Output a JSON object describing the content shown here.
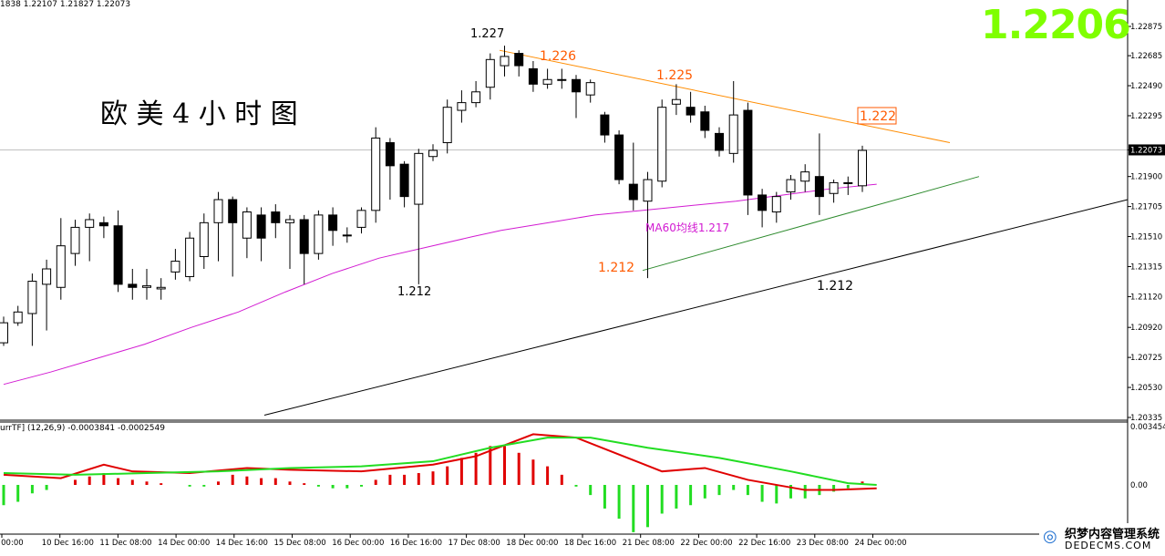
{
  "header": {
    "ohlc_text": "1838 1.22107 1.21827 1.22073",
    "big_price": "1.2206",
    "title": "欧 美 4 小 时 图"
  },
  "macd": {
    "info_text": "urrTF] (12,26,9) -0.0003841 -0.0002549",
    "axis_labels": [
      "0.003454",
      "0.00"
    ]
  },
  "watermark": {
    "logo": "◎",
    "line1": "织梦内容管理系统",
    "line2": "DEDECMS.COM"
  },
  "colors": {
    "up": "#ffffff",
    "down": "#000000",
    "ma60": "#d21bd2",
    "resistance": "#ff8c00",
    "support_green": "#2e8b2e",
    "support_black": "#000000",
    "macd_red": "#e00000",
    "macd_green": "#22dd22",
    "label_orange": "#ff5a00",
    "big_price": "#7fff00"
  },
  "chart_data": {
    "type": "candlestick",
    "title": "欧 美 4 小 时 图",
    "ylim": [
      1.20335,
      1.22875
    ],
    "current_price": 1.22073,
    "yticks": [
      "1.22875",
      "1.22685",
      "1.22490",
      "1.22295",
      "1.22073",
      "1.21900",
      "1.21705",
      "1.21510",
      "1.21315",
      "1.21120",
      "1.20920",
      "1.20725",
      "1.20530",
      "1.20335"
    ],
    "xticks": [
      "Dec 00:00",
      "10 Dec 16:00",
      "11 Dec 08:00",
      "14 Dec 00:00",
      "14 Dec 16:00",
      "15 Dec 08:00",
      "16 Dec 00:00",
      "16 Dec 16:00",
      "17 Dec 08:00",
      "18 Dec 00:00",
      "18 Dec 16:00",
      "21 Dec 08:00",
      "22 Dec 00:00",
      "22 Dec 16:00",
      "23 Dec 08:00",
      "24 Dec 00:00"
    ],
    "candles": [
      [
        1.2082,
        1.2095,
        1.208,
        1.2099
      ],
      [
        1.2095,
        1.2102,
        1.2093,
        1.2106
      ],
      [
        1.2101,
        1.2122,
        1.208,
        1.2127
      ],
      [
        1.212,
        1.213,
        1.209,
        1.2136
      ],
      [
        1.2118,
        1.2145,
        1.211,
        1.2163
      ],
      [
        1.214,
        1.2157,
        1.2132,
        1.2162
      ],
      [
        1.2157,
        1.2162,
        1.2135,
        1.2166
      ],
      [
        1.216,
        1.2158,
        1.215,
        1.2164
      ],
      [
        1.2158,
        1.212,
        1.2115,
        1.2168
      ],
      [
        1.212,
        1.2118,
        1.211,
        1.213
      ],
      [
        1.2118,
        1.2119,
        1.211,
        1.213
      ],
      [
        1.2117,
        1.2118,
        1.211,
        1.2124
      ],
      [
        1.2128,
        1.2135,
        1.2123,
        1.2143
      ],
      [
        1.2125,
        1.215,
        1.2122,
        1.2154
      ],
      [
        1.2138,
        1.216,
        1.213,
        1.2166
      ],
      [
        1.216,
        1.2175,
        1.2135,
        1.218
      ],
      [
        1.2175,
        1.216,
        1.2125,
        1.2177
      ],
      [
        1.215,
        1.2167,
        1.2137,
        1.217
      ],
      [
        1.2165,
        1.215,
        1.2135,
        1.217
      ],
      [
        1.2167,
        1.216,
        1.215,
        1.2172
      ],
      [
        1.216,
        1.2162,
        1.213,
        1.2165
      ],
      [
        1.2162,
        1.214,
        1.212,
        1.2165
      ],
      [
        1.214,
        1.2165,
        1.2136,
        1.2168
      ],
      [
        1.2165,
        1.2155,
        1.2145,
        1.217
      ],
      [
        1.2152,
        1.2152,
        1.2147,
        1.2157
      ],
      [
        1.2157,
        1.2168,
        1.2153,
        1.217
      ],
      [
        1.2168,
        1.2215,
        1.216,
        1.2222
      ],
      [
        1.2212,
        1.2197,
        1.2175,
        1.2215
      ],
      [
        1.2198,
        1.2177,
        1.217,
        1.22
      ],
      [
        1.2172,
        1.2205,
        1.212,
        1.2208
      ],
      [
        1.2203,
        1.2207,
        1.22,
        1.2211
      ],
      [
        1.2212,
        1.2235,
        1.2205,
        1.224
      ],
      [
        1.2233,
        1.2238,
        1.2225,
        1.2246
      ],
      [
        1.2238,
        1.2245,
        1.2235,
        1.2252
      ],
      [
        1.2248,
        1.2266,
        1.224,
        1.227
      ],
      [
        1.2262,
        1.2268,
        1.2255,
        1.2275
      ],
      [
        1.227,
        1.2262,
        1.2255,
        1.2272
      ],
      [
        1.226,
        1.225,
        1.2245,
        1.2265
      ],
      [
        1.225,
        1.2253,
        1.2247,
        1.226
      ],
      [
        1.2253,
        1.2253,
        1.2247,
        1.226
      ],
      [
        1.2253,
        1.2245,
        1.2228,
        1.2256
      ],
      [
        1.2243,
        1.2251,
        1.2238,
        1.2253
      ],
      [
        1.223,
        1.2217,
        1.2212,
        1.2232
      ],
      [
        1.2217,
        1.2188,
        1.2185,
        1.222
      ],
      [
        1.2185,
        1.2175,
        1.2168,
        1.2212
      ],
      [
        1.2174,
        1.2188,
        1.2124,
        1.2193
      ],
      [
        1.2187,
        1.2235,
        1.2183,
        1.224
      ],
      [
        1.2237,
        1.224,
        1.223,
        1.225
      ],
      [
        1.2235,
        1.223,
        1.2225,
        1.2245
      ],
      [
        1.2232,
        1.222,
        1.2215,
        1.2236
      ],
      [
        1.2218,
        1.2207,
        1.2203,
        1.2222
      ],
      [
        1.2205,
        1.223,
        1.2199,
        1.2252
      ],
      [
        1.2233,
        1.2178,
        1.2165,
        1.2238
      ],
      [
        1.2178,
        1.2168,
        1.2157,
        1.2182
      ],
      [
        1.2167,
        1.2177,
        1.216,
        1.218
      ],
      [
        1.218,
        1.2188,
        1.2175,
        1.2191
      ],
      [
        1.2187,
        1.2193,
        1.218,
        1.2198
      ],
      [
        1.219,
        1.2177,
        1.2165,
        1.2218
      ],
      [
        1.2179,
        1.2186,
        1.2173,
        1.2188
      ],
      [
        1.2186,
        1.2186,
        1.2178,
        1.219
      ],
      [
        1.2184,
        1.2207,
        1.218,
        1.221
      ]
    ],
    "ma60": [
      [
        0,
        1.2055
      ],
      [
        5,
        1.2063
      ],
      [
        10,
        1.2072
      ],
      [
        15,
        1.2081
      ],
      [
        20,
        1.2092
      ],
      [
        25,
        1.2102
      ],
      [
        30,
        1.2115
      ],
      [
        35,
        1.2127
      ],
      [
        40,
        1.2137
      ],
      [
        45,
        1.2144
      ],
      [
        50,
        1.2151
      ],
      [
        53,
        1.2155
      ],
      [
        58,
        1.216
      ],
      [
        63,
        1.2165
      ],
      [
        68,
        1.2168
      ],
      [
        73,
        1.2171
      ],
      [
        78,
        1.2174
      ],
      [
        83,
        1.2178
      ],
      [
        88,
        1.2182
      ],
      [
        93,
        1.2185
      ]
    ],
    "trendlines": [
      {
        "name": "resistance",
        "from": [
          0,
          1.2272
        ],
        "to": [
          1,
          1.2212
        ]
      },
      {
        "name": "green-support",
        "from": [
          0,
          1.2129
        ],
        "to": [
          1,
          1.219
        ]
      },
      {
        "name": "black-support",
        "from": [
          0,
          1.2035
        ],
        "to": [
          1,
          1.2175
        ]
      }
    ],
    "annotations": [
      {
        "text": "1.227"
      },
      {
        "text": "1.226"
      },
      {
        "text": "1.225"
      },
      {
        "text": "1.222"
      },
      {
        "text": "1.212"
      },
      {
        "text": "1.212"
      },
      {
        "text": "1.212"
      },
      {
        "text": "MA60均线1.217"
      }
    ],
    "macd_histogram": [
      -0.0012,
      -0.001,
      -0.0005,
      -0.0003,
      0.0,
      0.0003,
      0.0005,
      0.0007,
      0.0004,
      0.0003,
      0.0002,
      0.0001,
      0.0,
      -0.0001,
      -0.0001,
      0.0002,
      0.0006,
      0.0005,
      0.0004,
      0.0004,
      0.0002,
      0.0001,
      -0.0001,
      -0.0002,
      -0.0002,
      -0.0001,
      0.0003,
      0.0006,
      0.0006,
      0.0007,
      0.0008,
      0.0011,
      0.0016,
      0.0019,
      0.0023,
      0.0023,
      0.0019,
      0.0015,
      0.0011,
      0.0006,
      -0.0001,
      -0.0006,
      -0.0014,
      -0.002,
      -0.0028,
      -0.0025,
      -0.0017,
      -0.0014,
      -0.0012,
      -0.0008,
      -0.0006,
      -0.0003,
      -0.0006,
      -0.001,
      -0.0011,
      -0.0008,
      -0.0008,
      -0.0006,
      -0.0004,
      -0.0002,
      0.0002
    ],
    "macd_line": [
      [
        0,
        0.0006
      ],
      [
        4,
        0.0004
      ],
      [
        7,
        0.0012
      ],
      [
        9,
        0.0008
      ],
      [
        13,
        0.0007
      ],
      [
        17,
        0.001
      ],
      [
        20,
        0.0009
      ],
      [
        25,
        0.0008
      ],
      [
        30,
        0.0012
      ],
      [
        33,
        0.0017
      ],
      [
        37,
        0.003
      ],
      [
        40,
        0.0028
      ],
      [
        43,
        0.0018
      ],
      [
        46,
        0.0008
      ],
      [
        49,
        0.001
      ],
      [
        52,
        0.0003
      ],
      [
        56,
        -0.0003
      ],
      [
        58,
        -0.0003
      ],
      [
        61,
        -0.0002
      ]
    ],
    "signal_line": [
      [
        0,
        0.0007
      ],
      [
        5,
        0.0006
      ],
      [
        10,
        0.0007
      ],
      [
        15,
        0.0008
      ],
      [
        20,
        0.001
      ],
      [
        25,
        0.0011
      ],
      [
        30,
        0.0014
      ],
      [
        34,
        0.0022
      ],
      [
        38,
        0.0028
      ],
      [
        41,
        0.0028
      ],
      [
        45,
        0.0022
      ],
      [
        50,
        0.0016
      ],
      [
        55,
        0.0008
      ],
      [
        59,
        0.0001
      ],
      [
        61,
        0.0
      ]
    ]
  }
}
